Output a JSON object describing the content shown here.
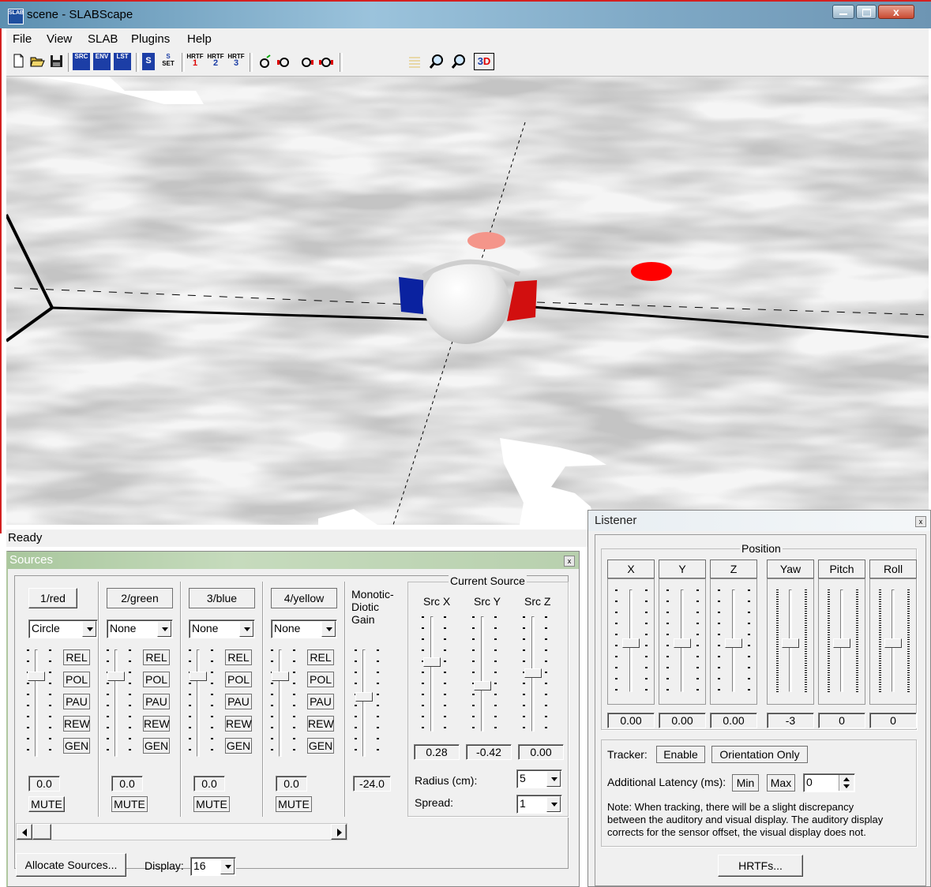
{
  "window": {
    "title": "scene - SLABScape",
    "icon_label": "SLAB"
  },
  "menu": [
    "File",
    "View",
    "SLAB",
    "Plugins",
    "Help"
  ],
  "toolbar": {
    "src_label": "SRC",
    "env_label": "ENV",
    "lst_label": "LST",
    "s_label": "S",
    "s_set_label": "S",
    "set_label": "SET",
    "hrtf_label": "HRTF",
    "hrtf1": "1",
    "hrtf2": "2",
    "hrtf3": "3",
    "three_label": "3",
    "d_label": "D"
  },
  "status": {
    "text": "Ready"
  },
  "sources": {
    "title": "Sources",
    "channels": [
      {
        "name": "1/red",
        "mode": "Circle",
        "value": "0.0"
      },
      {
        "name": "2/green",
        "mode": "None",
        "value": "0.0"
      },
      {
        "name": "3/blue",
        "mode": "None",
        "value": "0.0"
      },
      {
        "name": "4/yellow",
        "mode": "None",
        "value": "0.0"
      }
    ],
    "buttons": {
      "rel": "REL",
      "pol": "POL",
      "pau": "PAU",
      "rew": "REW",
      "gen": "GEN",
      "mute": "MUTE"
    },
    "gain": {
      "label_line1": "Monotic-",
      "label_line2": "Diotic",
      "label_line3": "Gain",
      "value": "-24.0"
    },
    "current_source": {
      "title": "Current Source",
      "x_label": "Src X",
      "y_label": "Src Y",
      "z_label": "Src Z",
      "x": "0.28",
      "y": "-0.42",
      "z": "0.00",
      "radius_label": "Radius (cm):",
      "radius": "5",
      "spread_label": "Spread:",
      "spread": "1"
    },
    "allocate_label": "Allocate Sources...",
    "display_label": "Display:",
    "display_value": "16"
  },
  "listener": {
    "title": "Listener",
    "position_label": "Position",
    "columns": [
      {
        "label": "X",
        "value": "0.00"
      },
      {
        "label": "Y",
        "value": "0.00"
      },
      {
        "label": "Z",
        "value": "0.00"
      },
      {
        "label": "Yaw",
        "value": "-3"
      },
      {
        "label": "Pitch",
        "value": "0"
      },
      {
        "label": "Roll",
        "value": "0"
      }
    ],
    "tracker_label": "Tracker:",
    "enable_label": "Enable",
    "orientation_label": "Orientation Only",
    "latency_label": "Additional Latency (ms):",
    "min_label": "Min",
    "max_label": "Max",
    "latency_value": "0",
    "note_line1": "Note: When tracking, there will be a slight discrepancy",
    "note_line2": "between the auditory and visual display.  The auditory display",
    "note_line3": "corrects for the sensor offset, the visual display does not.",
    "hrtfs_label": "HRTFs..."
  },
  "colors": {
    "source_red": "#ff0000",
    "source_pink": "#f4958a",
    "left_ear": "#0a22a0",
    "right_ear": "#d20f0f"
  }
}
